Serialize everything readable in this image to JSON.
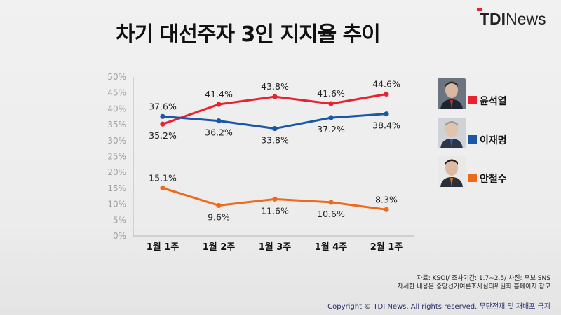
{
  "header": {
    "title": "차기 대선주자 3인 지지율 추이",
    "brand_bold": "TDI",
    "brand_light": "News"
  },
  "chart_data": {
    "type": "line",
    "title": "차기 대선주자 3인 지지율 추이",
    "categories": [
      "1월 1주",
      "1월 2주",
      "1월 3주",
      "1월 4주",
      "2월 1주"
    ],
    "ylim": [
      0,
      50
    ],
    "y_ticks": [
      "0%",
      "5%",
      "10%",
      "15%",
      "20%",
      "25%",
      "30%",
      "35%",
      "40%",
      "45%",
      "50%"
    ],
    "grid": false,
    "legend_position": "right",
    "series": [
      {
        "name": "윤석열",
        "color": "#e8232f",
        "values": [
          35.2,
          41.4,
          43.8,
          41.6,
          44.6
        ],
        "labels": [
          "35.2%",
          "41.4%",
          "43.8%",
          "41.6%",
          "44.6%"
        ]
      },
      {
        "name": "이재명",
        "color": "#1c57a5",
        "values": [
          37.6,
          36.2,
          33.8,
          37.2,
          38.4
        ],
        "labels": [
          "37.6%",
          "36.2%",
          "33.8%",
          "37.2%",
          "38.4%"
        ]
      },
      {
        "name": "안철수",
        "color": "#ee6a1a",
        "values": [
          15.1,
          9.6,
          11.6,
          10.6,
          8.3
        ],
        "labels": [
          "15.1%",
          "9.6%",
          "11.6%",
          "10.6%",
          "8.3%"
        ]
      }
    ]
  },
  "footer": {
    "source_line1": "자료: KSOI/ 조사기간: 1.7~2.5/ 사진: 후보 SNS",
    "source_line2": "자세한 내용은 중앙선거여론조사심의위원회 홈페이지 참고",
    "copyright": "Copyright © TDI News. All rights reserved. 무단전재 및 재배포 금지"
  }
}
